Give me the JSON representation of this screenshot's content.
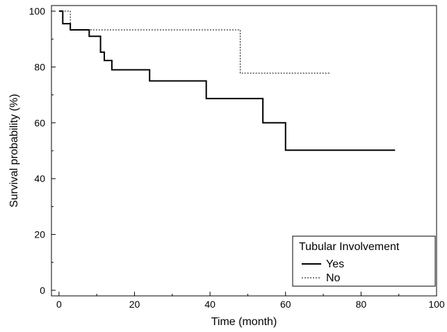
{
  "chart_data": {
    "type": "line",
    "title": "",
    "xlabel": "Time (month)",
    "ylabel": "Survival probability (%)",
    "xlim": [
      -2,
      100
    ],
    "ylim": [
      -2,
      102
    ],
    "xticks": [
      0,
      20,
      40,
      60,
      80,
      100
    ],
    "yticks": [
      0,
      20,
      40,
      60,
      80,
      100
    ],
    "grid": false,
    "step": true,
    "legend": {
      "title": "Tubular Involvement",
      "placement": "bottom-right"
    },
    "series": [
      {
        "name": "Yes",
        "style": "solid",
        "color": "#000000",
        "x": [
          0,
          1,
          3,
          8,
          11,
          12,
          14,
          24,
          39,
          54,
          60,
          89
        ],
        "y": [
          100,
          95.5,
          93.3,
          91,
          85.3,
          82.3,
          79,
          75,
          68.7,
          60,
          50.2,
          50.2
        ]
      },
      {
        "name": "No",
        "style": "dashed",
        "color": "#000000",
        "x": [
          0,
          3,
          8,
          48,
          72
        ],
        "y": [
          100,
          93.3,
          93.3,
          77.8,
          77.8
        ]
      }
    ]
  }
}
